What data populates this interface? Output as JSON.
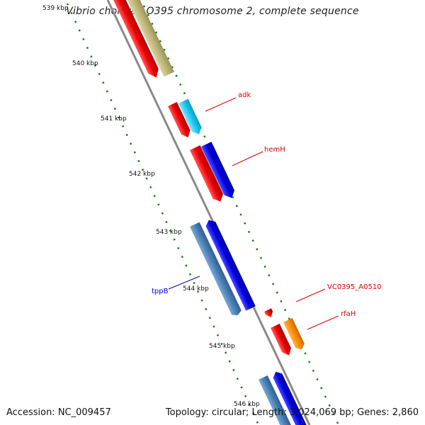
{
  "title": "Vibrio cholerae O395 chromosome 2, complete sequence",
  "footer": {
    "accession": "Accession: NC_009457",
    "summary": "Topology: circular; Length: 3,024,069 bp; Genes: 2,860"
  },
  "ticks": [
    {
      "label": "539 kbp"
    },
    {
      "label": "540 kbp"
    },
    {
      "label": "541 kbp"
    },
    {
      "label": "542 kbp"
    },
    {
      "label": "543 kbp"
    },
    {
      "label": "544 kbp"
    },
    {
      "label": "545 kbp"
    },
    {
      "label": "546 kbp"
    }
  ],
  "gene_labels": [
    {
      "name": "adk",
      "color": "#dd0000"
    },
    {
      "name": "hemH",
      "color": "#dd0000"
    },
    {
      "name": "tppB",
      "color": "#0000cc"
    },
    {
      "name": "VC0395_A0510",
      "color": "#dd0000"
    },
    {
      "name": "rfaH",
      "color": "#dd0000"
    }
  ],
  "colors": {
    "backbone": "#8a8a8a",
    "tick_dots": "#1e7d1e",
    "red_gene": "#ee0000",
    "blue_gene": "#0000e0",
    "steel_gene": "#4a7fb3",
    "cyan_gene": "#1ac8f0",
    "orange_gene": "#ff8a00",
    "olive_gene": "#bdb577"
  }
}
